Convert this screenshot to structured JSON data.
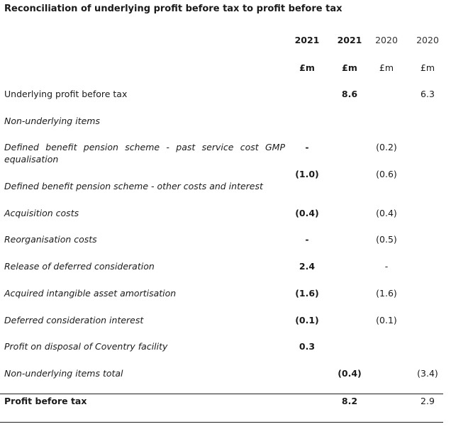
{
  "title": "Reconciliation of underlying profit before tax to profit before tax",
  "headers": {
    "years": [
      "2021",
      "2021",
      "2020",
      "2020"
    ],
    "units": [
      "£m",
      "£m",
      "£m",
      "£m"
    ]
  },
  "rows": {
    "underlying": {
      "label": "Underlying profit before tax",
      "c2": "8.6",
      "c4": "6.3"
    },
    "nonund_heading": {
      "label": "Non-underlying items"
    },
    "gmp": {
      "label1": "Defined benefit pension scheme - past service cost GMP",
      "label2": "equalisation",
      "c1": "-",
      "c3": "(0.2)"
    },
    "pension_other": {
      "label": "Defined benefit pension scheme - other costs and interest",
      "c1": "(1.0)",
      "c3": "(0.6)"
    },
    "acquisition": {
      "label": "Acquisition costs",
      "c1": "(0.4)",
      "c3": "(0.4)"
    },
    "reorg": {
      "label": "Reorganisation costs",
      "c1": "-",
      "c3": "(0.5)"
    },
    "release": {
      "label": "Release of deferred consideration",
      "c1": "2.4",
      "c3": "-"
    },
    "amort": {
      "label": "Acquired intangible asset amortisation",
      "c1": "(1.6)",
      "c3": "(1.6)"
    },
    "deferred_interest": {
      "label": "Deferred consideration interest",
      "c1": "(0.1)",
      "c3": "(0.1)"
    },
    "disposal": {
      "label": "Profit on disposal of Coventry facility",
      "c1": "0.3"
    },
    "nonund_total": {
      "label": "Non-underlying items total",
      "c2": "(0.4)",
      "c4": "(3.4)"
    },
    "pbt": {
      "label": "Profit before tax",
      "c2": "8.2",
      "c4": "2.9"
    }
  }
}
